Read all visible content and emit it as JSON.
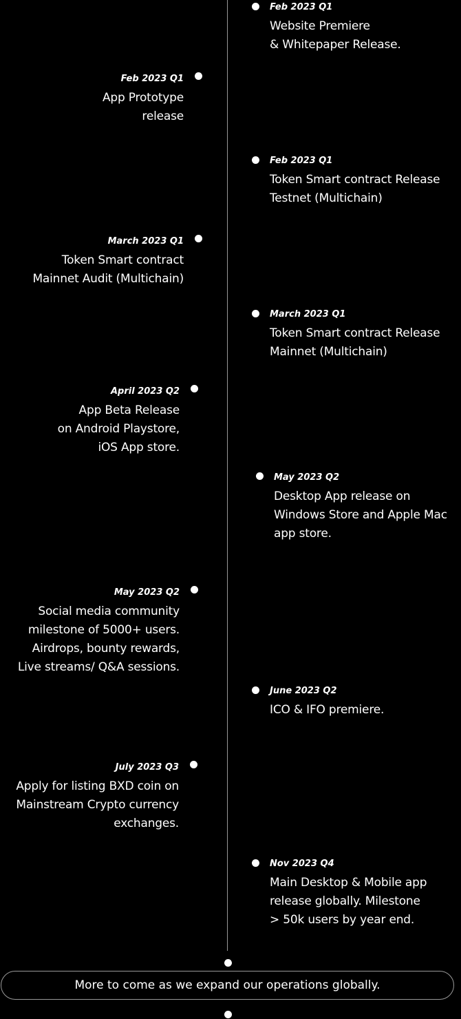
{
  "timeline": {
    "milestones": [
      {
        "date": "Feb 2023 Q1",
        "text": "Website Premiere\n& Whitepaper Release."
      },
      {
        "date": "Feb 2023 Q1",
        "text": "App Prototype \nrelease"
      },
      {
        "date": "Feb 2023 Q1",
        "text": "Token Smart contract Release\nTestnet (Multichain)"
      },
      {
        "date": "March 2023 Q1",
        "text": "Token Smart contract \nMainnet Audit (Multichain)"
      },
      {
        "date": "March 2023 Q1",
        "text": "Token Smart contract Release\nMainnet (Multichain)"
      },
      {
        "date": "April  2023 Q2",
        "text": "App Beta Release\non Android Playstore,\niOS App store."
      },
      {
        "date": "May 2023 Q2",
        "text": "Desktop App release on\nWindows Store and Apple Mac\napp store."
      },
      {
        "date": "May  2023 Q2",
        "text": "Social media community\nmilestone of 5000+ users.\nAirdrops,  bounty rewards,\nLive streams/ Q&A sessions."
      },
      {
        "date": "June 2023 Q2",
        "text": "ICO & IFO premiere."
      },
      {
        "date": "July  2023 Q3",
        "text": "Apply for listing BXD coin on\nMainstream Crypto currency \nexchanges."
      },
      {
        "date": "Nov 2023 Q4",
        "text": "Main Desktop & Mobile app\nrelease globally. Milestone\n> 50k users by year end."
      }
    ],
    "footer": "More to come as we expand our operations globally."
  }
}
